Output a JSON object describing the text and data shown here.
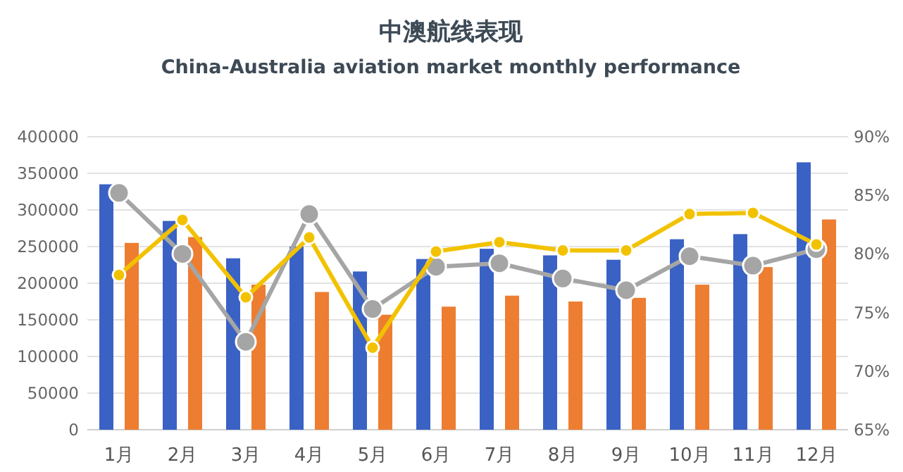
{
  "chart_data": {
    "type": "bar",
    "title": "中澳航线表现",
    "subtitle": "China-Australia aviation market monthly performance",
    "categories": [
      "1月",
      "2月",
      "3月",
      "4月",
      "5月",
      "6月",
      "7月",
      "8月",
      "9月",
      "10月",
      "11月",
      "12月"
    ],
    "series": [
      {
        "color": "#3a62c4",
        "values": [
          335000,
          285000,
          234000,
          250000,
          216000,
          233000,
          247000,
          238000,
          232000,
          260000,
          267000,
          365000
        ]
      },
      {
        "color": "#ed7d31",
        "values": [
          255000,
          263000,
          198000,
          188000,
          157000,
          168000,
          183000,
          175000,
          180000,
          198000,
          222000,
          287000
        ]
      },
      {
        "type": "line",
        "axis": "y2",
        "color": "#a5a5a5",
        "values": [
          85.2,
          80.0,
          72.5,
          83.4,
          75.3,
          78.9,
          79.2,
          77.9,
          76.9,
          79.8,
          79.0,
          80.4
        ]
      },
      {
        "type": "line",
        "axis": "y2",
        "color": "#f2c200",
        "values": [
          78.2,
          82.9,
          76.3,
          81.4,
          72.0,
          80.2,
          81.0,
          80.3,
          80.3,
          83.4,
          83.5,
          80.8
        ]
      }
    ],
    "ylim": [
      0,
      400000
    ],
    "yticks": [
      0,
      50000,
      100000,
      150000,
      200000,
      250000,
      300000,
      350000,
      400000
    ],
    "y2lim": [
      65,
      90
    ],
    "y2ticks": [
      {
        "value": 65,
        "label": "65%"
      },
      {
        "value": 70,
        "label": "70%"
      },
      {
        "value": 75,
        "label": "75%"
      },
      {
        "value": 80,
        "label": "80%"
      },
      {
        "value": 85,
        "label": "85%"
      },
      {
        "value": 90,
        "label": "90%"
      }
    ],
    "grid": "y",
    "marker": "circle",
    "line_style": "solid"
  }
}
